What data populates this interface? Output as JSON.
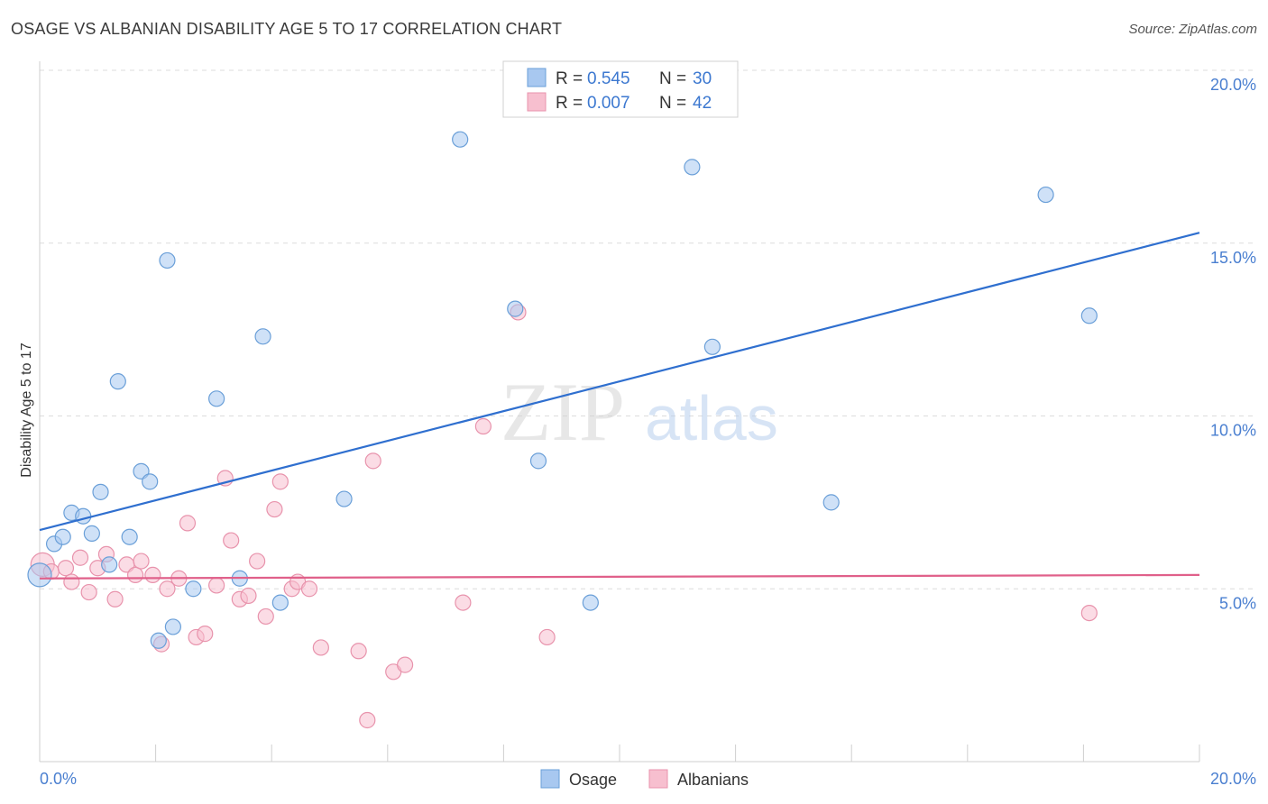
{
  "chart_data": {
    "type": "scatter",
    "title": "OSAGE VS ALBANIAN DISABILITY AGE 5 TO 17 CORRELATION CHART",
    "source": "Source: ZipAtlas.com",
    "ylabel": "Disability Age 5 to 17",
    "xlim": [
      0,
      20
    ],
    "ylim": [
      0,
      20
    ],
    "x_tick_labels": {
      "min": "0.0%",
      "max": "20.0%"
    },
    "y_ticks": [
      {
        "value": 5,
        "label": "5.0%"
      },
      {
        "value": 10,
        "label": "10.0%"
      },
      {
        "value": 15,
        "label": "15.0%"
      },
      {
        "value": 20,
        "label": "20.0%"
      }
    ],
    "watermark": {
      "part1": "ZIP",
      "part2": "atlas"
    },
    "legend": [
      {
        "r_label": "R =",
        "r_value": "0.545",
        "n_label": "N =",
        "n_value": "30"
      },
      {
        "r_label": "R =",
        "r_value": "0.007",
        "n_label": "N =",
        "n_value": "42"
      }
    ],
    "series": [
      {
        "name": "Osage",
        "color": "#a8c8f0",
        "stroke": "#6a9fd8",
        "line_color": "#2f6fcf",
        "trend": {
          "x0": 0,
          "y0": 6.7,
          "x1": 20,
          "y1": 15.3
        },
        "points": [
          [
            0.0,
            5.4
          ],
          [
            0.25,
            6.3
          ],
          [
            0.4,
            6.5
          ],
          [
            0.55,
            7.2
          ],
          [
            0.75,
            7.1
          ],
          [
            0.9,
            6.6
          ],
          [
            1.05,
            7.8
          ],
          [
            1.2,
            5.7
          ],
          [
            1.35,
            11.0
          ],
          [
            1.55,
            6.5
          ],
          [
            1.75,
            8.4
          ],
          [
            1.9,
            8.1
          ],
          [
            2.05,
            3.5
          ],
          [
            2.2,
            14.5
          ],
          [
            2.3,
            3.9
          ],
          [
            2.65,
            5.0
          ],
          [
            3.05,
            10.5
          ],
          [
            3.45,
            5.3
          ],
          [
            3.85,
            12.3
          ],
          [
            4.15,
            4.6
          ],
          [
            5.25,
            7.6
          ],
          [
            7.25,
            18.0
          ],
          [
            8.2,
            13.1
          ],
          [
            8.6,
            8.7
          ],
          [
            9.5,
            4.6
          ],
          [
            11.25,
            17.2
          ],
          [
            11.6,
            12.0
          ],
          [
            13.65,
            7.5
          ],
          [
            17.35,
            16.4
          ],
          [
            18.1,
            12.9
          ]
        ]
      },
      {
        "name": "Albanians",
        "color": "#f7bfcf",
        "stroke": "#e893ac",
        "line_color": "#e0608a",
        "trend": {
          "x0": 0,
          "y0": 5.3,
          "x1": 20,
          "y1": 5.4
        },
        "points": [
          [
            0.05,
            5.7
          ],
          [
            0.2,
            5.5
          ],
          [
            0.45,
            5.6
          ],
          [
            0.55,
            5.2
          ],
          [
            0.7,
            5.9
          ],
          [
            0.85,
            4.9
          ],
          [
            1.0,
            5.6
          ],
          [
            1.15,
            6.0
          ],
          [
            1.3,
            4.7
          ],
          [
            1.5,
            5.7
          ],
          [
            1.65,
            5.4
          ],
          [
            1.75,
            5.8
          ],
          [
            1.95,
            5.4
          ],
          [
            2.1,
            3.4
          ],
          [
            2.2,
            5.0
          ],
          [
            2.4,
            5.3
          ],
          [
            2.55,
            6.9
          ],
          [
            2.7,
            3.6
          ],
          [
            2.85,
            3.7
          ],
          [
            3.05,
            5.1
          ],
          [
            3.2,
            8.2
          ],
          [
            3.3,
            6.4
          ],
          [
            3.45,
            4.7
          ],
          [
            3.6,
            4.8
          ],
          [
            3.75,
            5.8
          ],
          [
            3.9,
            4.2
          ],
          [
            4.05,
            7.3
          ],
          [
            4.15,
            8.1
          ],
          [
            4.35,
            5.0
          ],
          [
            4.45,
            5.2
          ],
          [
            4.65,
            5.0
          ],
          [
            4.85,
            3.3
          ],
          [
            5.5,
            3.2
          ],
          [
            5.65,
            1.2
          ],
          [
            5.75,
            8.7
          ],
          [
            6.1,
            2.6
          ],
          [
            6.3,
            2.8
          ],
          [
            7.3,
            4.6
          ],
          [
            7.65,
            9.7
          ],
          [
            8.25,
            13.0
          ],
          [
            8.75,
            3.6
          ],
          [
            18.1,
            4.3
          ]
        ]
      }
    ]
  }
}
